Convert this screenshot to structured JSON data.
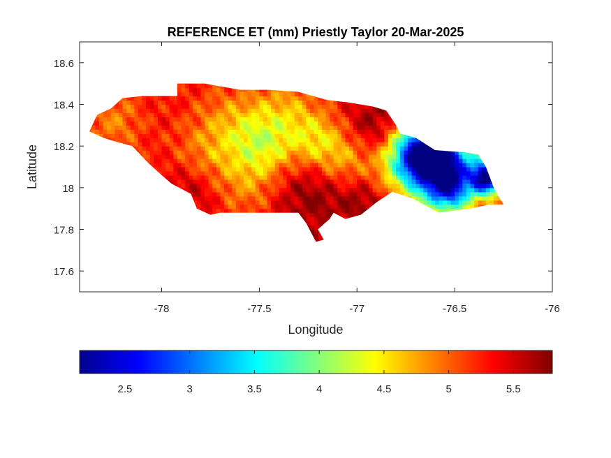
{
  "chart_data": {
    "type": "heatmap",
    "title": "REFERENCE ET (mm) Priestly Taylor 20-Mar-2025",
    "xlabel": "Longitude",
    "ylabel": "Latitude",
    "xlim": [
      -78.42,
      -76.0
    ],
    "ylim": [
      17.5,
      18.7
    ],
    "xticks": [
      -78,
      -77.5,
      -77,
      -76.5,
      -76
    ],
    "xtick_labels": [
      "-78",
      "-77.5",
      "-77",
      "-76.5",
      "-76"
    ],
    "yticks": [
      17.6,
      17.8,
      18.0,
      18.2,
      18.4,
      18.6
    ],
    "ytick_labels": [
      "17.6",
      "17.8",
      "18",
      "18.2",
      "18.4",
      "18.6"
    ],
    "colormap": "jet",
    "clim": [
      2.15,
      5.8
    ],
    "colorbar": {
      "location": "below",
      "ticks": [
        2.5,
        3,
        3.5,
        4,
        4.5,
        5,
        5.5
      ],
      "tick_labels": [
        "2.5",
        "3",
        "3.5",
        "4",
        "4.5",
        "5",
        "5.5"
      ]
    },
    "region_outline": [
      [
        -78.37,
        18.27
      ],
      [
        -78.33,
        18.35
      ],
      [
        -78.26,
        18.38
      ],
      [
        -78.2,
        18.43
      ],
      [
        -78.1,
        18.44
      ],
      [
        -78.0,
        18.44
      ],
      [
        -77.92,
        18.44
      ],
      [
        -77.92,
        18.5
      ],
      [
        -77.78,
        18.5
      ],
      [
        -77.6,
        18.47
      ],
      [
        -77.45,
        18.47
      ],
      [
        -77.3,
        18.46
      ],
      [
        -77.15,
        18.42
      ],
      [
        -77.05,
        18.41
      ],
      [
        -76.92,
        18.39
      ],
      [
        -76.85,
        18.37
      ],
      [
        -76.8,
        18.3
      ],
      [
        -76.78,
        18.26
      ],
      [
        -76.7,
        18.24
      ],
      [
        -76.6,
        18.18
      ],
      [
        -76.45,
        18.17
      ],
      [
        -76.38,
        18.16
      ],
      [
        -76.34,
        18.1
      ],
      [
        -76.3,
        18.0
      ],
      [
        -76.27,
        17.95
      ],
      [
        -76.25,
        17.92
      ],
      [
        -76.32,
        17.92
      ],
      [
        -76.42,
        17.9
      ],
      [
        -76.5,
        17.89
      ],
      [
        -76.58,
        17.88
      ],
      [
        -76.72,
        17.95
      ],
      [
        -76.82,
        17.98
      ],
      [
        -76.9,
        17.93
      ],
      [
        -76.98,
        17.87
      ],
      [
        -77.06,
        17.85
      ],
      [
        -77.12,
        17.88
      ],
      [
        -77.14,
        17.85
      ],
      [
        -77.2,
        17.8
      ],
      [
        -77.17,
        17.75
      ],
      [
        -77.21,
        17.74
      ],
      [
        -77.26,
        17.83
      ],
      [
        -77.3,
        17.88
      ],
      [
        -77.5,
        17.88
      ],
      [
        -77.7,
        17.88
      ],
      [
        -77.75,
        17.87
      ],
      [
        -77.82,
        17.9
      ],
      [
        -77.85,
        17.97
      ],
      [
        -77.95,
        18.02
      ],
      [
        -78.0,
        18.06
      ],
      [
        -78.07,
        18.12
      ],
      [
        -78.15,
        18.2
      ],
      [
        -78.23,
        18.22
      ],
      [
        -78.3,
        18.24
      ],
      [
        -78.37,
        18.27
      ]
    ],
    "value_field": {
      "base": 5.35,
      "hotspots": [
        {
          "lon": -76.58,
          "lat": 18.12,
          "value": 2.3,
          "radius": 0.13
        },
        {
          "lon": -76.33,
          "lat": 18.05,
          "value": 2.4,
          "radius": 0.06
        },
        {
          "lon": -76.7,
          "lat": 18.17,
          "value": 3.8,
          "radius": 0.1
        },
        {
          "lon": -76.52,
          "lat": 17.98,
          "value": 4.0,
          "radius": 0.08
        },
        {
          "lon": -78.25,
          "lat": 18.32,
          "value": 4.9,
          "radius": 0.12
        },
        {
          "lon": -77.65,
          "lat": 18.28,
          "value": 4.8,
          "radius": 0.15
        },
        {
          "lon": -77.47,
          "lat": 18.2,
          "value": 4.6,
          "radius": 0.12
        },
        {
          "lon": -77.2,
          "lat": 18.22,
          "value": 4.6,
          "radius": 0.1
        },
        {
          "lon": -77.05,
          "lat": 18.12,
          "value": 4.8,
          "radius": 0.1
        },
        {
          "lon": -77.82,
          "lat": 18.1,
          "value": 5.0,
          "radius": 0.12
        },
        {
          "lon": -77.35,
          "lat": 18.38,
          "value": 4.9,
          "radius": 0.12
        },
        {
          "lon": -76.85,
          "lat": 18.05,
          "value": 5.0,
          "radius": 0.1
        },
        {
          "lon": -77.55,
          "lat": 17.98,
          "value": 5.0,
          "radius": 0.12
        },
        {
          "lon": -77.25,
          "lat": 17.98,
          "value": 5.8,
          "radius": 0.15
        },
        {
          "lon": -77.85,
          "lat": 18.0,
          "value": 5.8,
          "radius": 0.1
        },
        {
          "lon": -76.95,
          "lat": 17.95,
          "value": 5.8,
          "radius": 0.1
        },
        {
          "lon": -76.9,
          "lat": 18.3,
          "value": 5.8,
          "radius": 0.1
        }
      ]
    }
  }
}
